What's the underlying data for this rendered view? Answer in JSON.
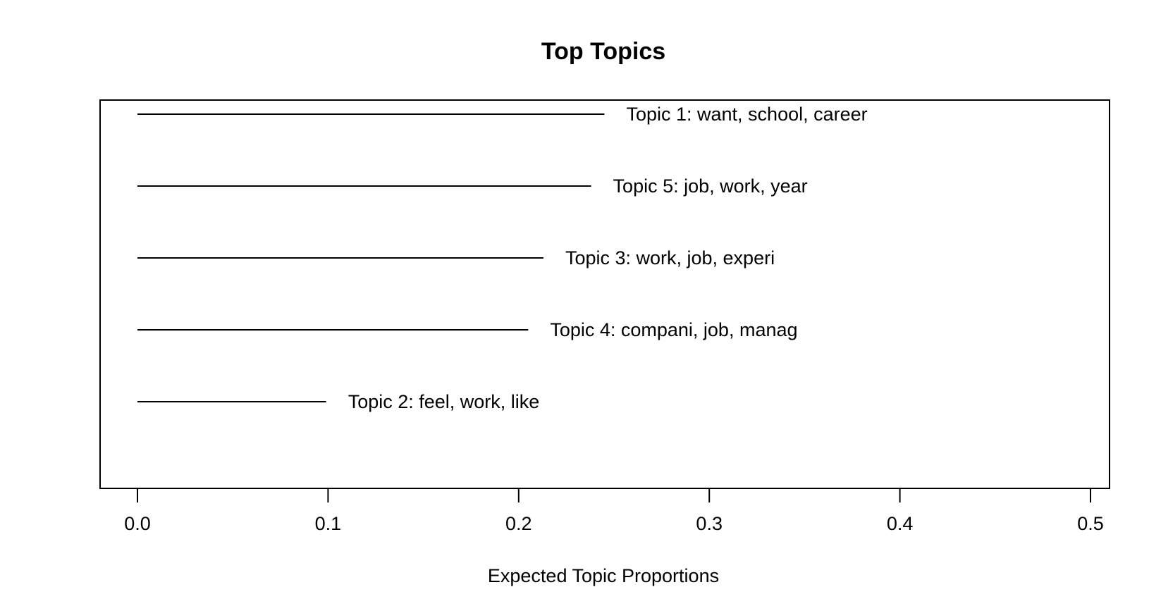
{
  "chart_data": {
    "type": "bar",
    "orientation": "horizontal",
    "title": "Top Topics",
    "xlabel": "Expected Topic Proportions",
    "ylabel": "",
    "xlim": [
      0.0,
      0.5
    ],
    "xticks": [
      0.0,
      0.1,
      0.2,
      0.3,
      0.4,
      0.5
    ],
    "xtick_labels": [
      "0.0",
      "0.1",
      "0.2",
      "0.3",
      "0.4",
      "0.5"
    ],
    "grid": false,
    "legend": "none",
    "bars": [
      {
        "label": "Topic 1: want, school, career",
        "value": 0.245
      },
      {
        "label": "Topic 5: job, work, year",
        "value": 0.238
      },
      {
        "label": "Topic 3: work, job, experi",
        "value": 0.213
      },
      {
        "label": "Topic 4: compani, job, manag",
        "value": 0.205
      },
      {
        "label": "Topic 2: feel, work, like",
        "value": 0.099
      }
    ]
  }
}
